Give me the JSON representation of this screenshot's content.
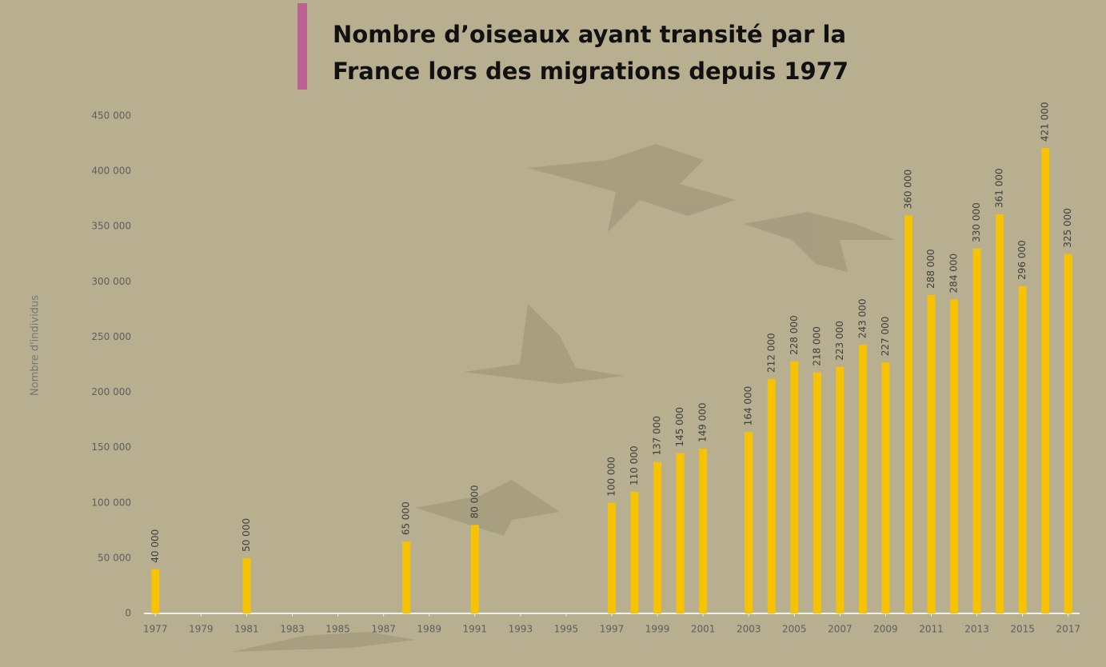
{
  "chart_data": {
    "type": "bar",
    "title": "Nombre d’oiseaux ayant transité par la France lors des migrations depuis 1977",
    "y_label": "Nombre d'individus",
    "x": [
      1977,
      1981,
      1988,
      1991,
      1997,
      1998,
      1999,
      2000,
      2001,
      2003,
      2004,
      2005,
      2006,
      2007,
      2008,
      2009,
      2010,
      2011,
      2012,
      2013,
      2014,
      2015,
      2016,
      2017
    ],
    "values": [
      40000,
      50000,
      65000,
      80000,
      100000,
      110000,
      137000,
      145000,
      149000,
      164000,
      212000,
      228000,
      218000,
      223000,
      243000,
      227000,
      360000,
      288000,
      284000,
      330000,
      361000,
      296000,
      421000,
      325000
    ],
    "value_labels": [
      "40 000",
      "50 000",
      "65 000",
      "80 000",
      "100 000",
      "110 000",
      "137 000",
      "145 000",
      "149 000",
      "164 000",
      "212 000",
      "228 000",
      "218 000",
      "223 000",
      "243 000",
      "227 000",
      "360 000",
      "288 000",
      "284 000",
      "330 000",
      "361 000",
      "296 000",
      "421 000",
      "325 000"
    ],
    "color": "#f7c300",
    "xlim": [
      1976.5,
      2017.5
    ],
    "xticks": [
      1977,
      1979,
      1981,
      1983,
      1985,
      1987,
      1989,
      1991,
      1993,
      1995,
      1997,
      1999,
      2001,
      2003,
      2005,
      2007,
      2009,
      2011,
      2013,
      2015,
      2017
    ],
    "ylim": [
      0,
      450000
    ],
    "yticks": [
      0,
      {
        "value": 50000,
        "label": "50 000"
      },
      {
        "value": 100000,
        "label": "100 000"
      },
      {
        "value": 150000,
        "label": "150 000"
      },
      {
        "value": 200000,
        "label": "200 000"
      },
      {
        "value": 250000,
        "label": "250 000"
      },
      {
        "value": 300000,
        "label": "300 000"
      },
      {
        "value": 350000,
        "label": "350 000"
      },
      {
        "value": 400000,
        "label": "400 000"
      },
      {
        "value": 450000,
        "label": "450 000"
      }
    ],
    "grid": false
  }
}
